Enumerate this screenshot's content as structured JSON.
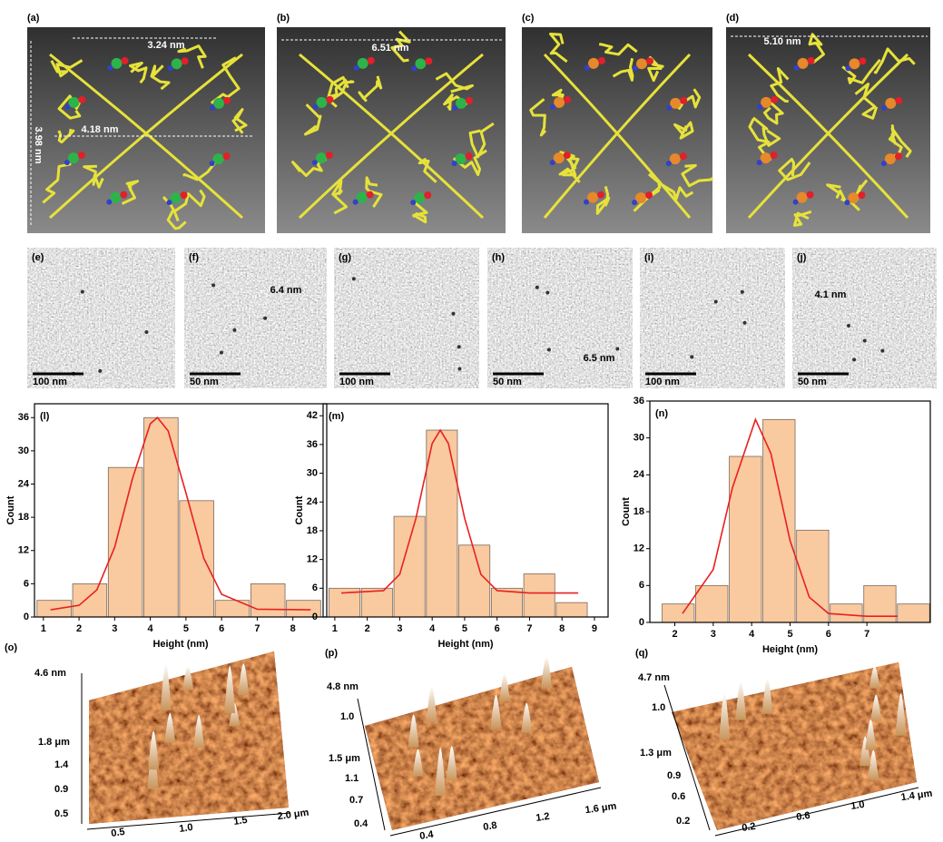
{
  "structures": [
    {
      "label": "(a)",
      "dims": [
        "3.24 nm",
        "4.18 nm",
        "3.98 nm"
      ]
    },
    {
      "label": "(b)",
      "dims": [
        "6.51 nm"
      ]
    },
    {
      "label": "(c)",
      "dims": []
    },
    {
      "label": "(d)",
      "dims": [
        "5.10 nm"
      ]
    }
  ],
  "tem": [
    {
      "label": "(e)",
      "scale": "100 nm"
    },
    {
      "label": "(f)",
      "scale": "50 nm",
      "size": "6.4 nm"
    },
    {
      "label": "(g)",
      "scale": "100 nm"
    },
    {
      "label": "(h)",
      "scale": "50 nm",
      "size": "6.5 nm"
    },
    {
      "label": "(i)",
      "scale": "100 nm"
    },
    {
      "label": "(j)",
      "scale": "50 nm",
      "size": "4.1 nm"
    }
  ],
  "chart_data": [
    {
      "type": "histogram",
      "label": "(l)",
      "xlabel": "Height  (nm)",
      "ylabel": "Count",
      "color": "#f9c9a0",
      "bins": [
        0.8,
        1.8,
        2.8,
        3.8,
        4.8,
        5.8,
        6.8,
        7.8,
        8.8
      ],
      "values": [
        3,
        6,
        27,
        36,
        21,
        3,
        6,
        3
      ],
      "fit": {
        "color": "#e8211f",
        "x": [
          1.2,
          2,
          2.5,
          3,
          3.5,
          4,
          4.2,
          4.5,
          5,
          5.5,
          6,
          7,
          8.5
        ],
        "values": [
          1.3,
          2.1,
          4.9,
          12.6,
          25.0,
          34.9,
          36.0,
          33.6,
          22.4,
          10.6,
          4.1,
          1.4,
          1.3
        ]
      },
      "xlim": [
        0.75,
        8.95
      ],
      "ylim": [
        0,
        38.5
      ],
      "xticks": [
        1,
        2,
        3,
        4,
        5,
        6,
        7,
        8
      ],
      "yticks": [
        0,
        6,
        12,
        18,
        24,
        30,
        36
      ]
    },
    {
      "type": "histogram",
      "label": "(m)",
      "xlabel": "Height  (nm)",
      "ylabel": "Count",
      "color": "#f9c9a0",
      "bins": [
        0.8,
        1.8,
        2.8,
        3.8,
        4.8,
        5.8,
        6.8,
        7.8,
        8.8
      ],
      "values": [
        6,
        6,
        21,
        39,
        15,
        6,
        9,
        3
      ],
      "fit": {
        "color": "#e8211f",
        "x": [
          1.2,
          2.5,
          3,
          3.5,
          4,
          4.25,
          4.5,
          5,
          5.5,
          6,
          7,
          8.5
        ],
        "values": [
          5.0,
          5.5,
          8.9,
          20.6,
          36.2,
          39.0,
          36.2,
          20.6,
          8.9,
          5.5,
          5.0,
          5.0
        ]
      },
      "xlim": [
        0.64,
        9.42
      ],
      "ylim": [
        0,
        44.5
      ],
      "xticks": [
        1,
        2,
        3,
        4,
        5,
        6,
        7,
        8,
        9
      ],
      "yticks": [
        0,
        6,
        12,
        18,
        24,
        30,
        36,
        42
      ]
    },
    {
      "type": "histogram",
      "label": "(n)",
      "xlabel": "Height  (nm)",
      "ylabel": "Count",
      "color": "#f9c9a0",
      "bins": [
        1.65,
        2.525,
        3.4,
        4.275,
        5.15,
        6.025,
        6.9,
        7.775,
        8.65
      ],
      "values": [
        3,
        6,
        27,
        33,
        15,
        3,
        6,
        3
      ],
      "fit": {
        "color": "#e8211f",
        "x": [
          2.2,
          3,
          3.5,
          4.1,
          4.5,
          5,
          5.5,
          6,
          7,
          7.8
        ],
        "values": [
          1.45,
          8.6,
          21.9,
          33.0,
          27.5,
          13.3,
          4.1,
          1.45,
          1.0,
          1.0
        ]
      },
      "xlim": [
        1.35,
        8.65
      ],
      "ylim": [
        0,
        36
      ],
      "xticks": [
        2,
        3,
        4,
        5,
        6,
        7
      ],
      "yticks": [
        0,
        6,
        12,
        18,
        24,
        30,
        36
      ]
    }
  ],
  "afm": [
    {
      "label": "(o)",
      "z_ticks": [
        "4.6 nm"
      ],
      "y_ticks": [
        "1.8 μm",
        "1.4",
        "0.9",
        "0.5"
      ],
      "x_ticks": [
        "0.5",
        "1.0",
        "1.5",
        "2.0 μm"
      ]
    },
    {
      "label": "(p)",
      "z_ticks": [
        "4.8 nm",
        "1.0"
      ],
      "y_ticks": [
        "1.5 μm",
        "1.1",
        "0.7",
        "0.4"
      ],
      "x_ticks": [
        "0.4",
        "0.8",
        "1.2",
        "1.6 μm"
      ]
    },
    {
      "label": "(q)",
      "z_ticks": [
        "4.7 nm",
        "1.0"
      ],
      "y_ticks": [
        "1.3 μm",
        "0.9",
        "0.6",
        "0.2"
      ],
      "x_ticks": [
        "0.2",
        "0.6",
        "1.0",
        "1.4 μm"
      ]
    }
  ]
}
